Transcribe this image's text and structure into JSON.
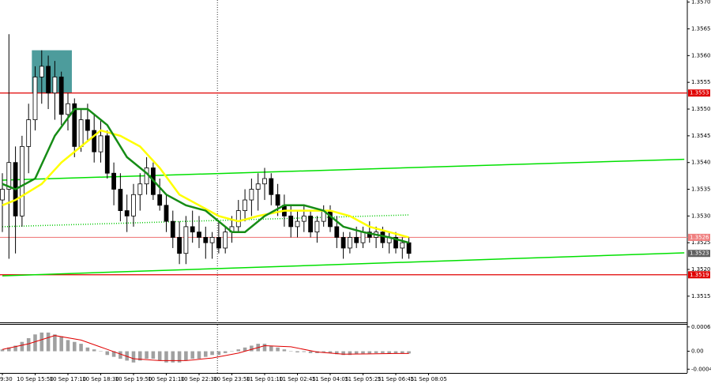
{
  "chart_data": [
    {
      "type": "candlestick",
      "xlim": [
        -0.36,
        104.46
      ],
      "ylim": [
        1.35101,
        1.35704
      ],
      "xticks": [
        {
          "value": 0,
          "label": "9:30"
        },
        {
          "value": 5,
          "label": "10 Sep 15:50"
        },
        {
          "value": 10,
          "label": "10 Sep 17:10"
        },
        {
          "value": 15,
          "label": "10 Sep 18:30"
        },
        {
          "value": 20,
          "label": "10 Sep 19:50"
        },
        {
          "value": 25,
          "label": "10 Sep 21:10"
        },
        {
          "value": 30,
          "label": "10 Sep 22:30"
        },
        {
          "value": 35,
          "label": "10 Sep 23:50"
        },
        {
          "value": 40,
          "label": "11 Sep 01:10"
        },
        {
          "value": 45,
          "label": "11 Sep 02:45"
        },
        {
          "value": 50,
          "label": "11 Sep 04:05"
        },
        {
          "value": 55,
          "label": "11 Sep 05:25"
        },
        {
          "value": 60,
          "label": "11 Sep 06:45"
        },
        {
          "value": 65,
          "label": "11 Sep 08:05"
        }
      ],
      "yticks": [
        {
          "value": 1.357,
          "label": "1.3570"
        },
        1.3565,
        {
          "value": 1.356,
          "label": "1.3560"
        },
        1.3555,
        {
          "value": 1.355,
          "label": "1.3550"
        },
        1.3545,
        {
          "value": 1.354,
          "label": "1.3540"
        },
        1.3535,
        {
          "value": 1.353,
          "label": "1.3530"
        },
        1.3525,
        {
          "value": 1.352,
          "label": "1.3520"
        },
        1.3515
      ],
      "grid": false,
      "candles": [
        [
          1.3533,
          1.3538,
          1.3527,
          1.3535
        ],
        [
          1.3535,
          1.3564,
          1.3522,
          1.354
        ],
        [
          1.354,
          1.3543,
          1.3523,
          1.353
        ],
        [
          1.353,
          1.3545,
          1.3528,
          1.3543
        ],
        [
          1.3543,
          1.3551,
          1.3538,
          1.3548
        ],
        [
          1.3548,
          1.3558,
          1.3546,
          1.3556
        ],
        [
          1.3556,
          1.3561,
          1.3551,
          1.3558
        ],
        [
          1.3558,
          1.356,
          1.355,
          1.3553
        ],
        [
          1.3553,
          1.3559,
          1.3548,
          1.3556
        ],
        [
          1.3556,
          1.3557,
          1.3547,
          1.3549
        ],
        [
          1.3549,
          1.3553,
          1.3546,
          1.3551
        ],
        [
          1.3551,
          1.3552,
          1.3541,
          1.3543
        ],
        [
          1.3543,
          1.355,
          1.3542,
          1.3548
        ],
        [
          1.3548,
          1.3551,
          1.3544,
          1.3546
        ],
        [
          1.3546,
          1.3549,
          1.354,
          1.3542
        ],
        [
          1.3542,
          1.3548,
          1.354,
          1.3545
        ],
        [
          1.3545,
          1.3546,
          1.3537,
          1.3538
        ],
        [
          1.3538,
          1.354,
          1.3532,
          1.3535
        ],
        [
          1.3535,
          1.3538,
          1.3529,
          1.3531
        ],
        [
          1.3531,
          1.3534,
          1.3527,
          1.353
        ],
        [
          1.353,
          1.3536,
          1.3528,
          1.3534
        ],
        [
          1.3534,
          1.3538,
          1.3531,
          1.3536
        ],
        [
          1.3536,
          1.3541,
          1.3534,
          1.3539
        ],
        [
          1.3539,
          1.354,
          1.3533,
          1.3534
        ],
        [
          1.3534,
          1.3537,
          1.3531,
          1.3532
        ],
        [
          1.3532,
          1.3534,
          1.3527,
          1.3529
        ],
        [
          1.3529,
          1.3531,
          1.3524,
          1.3526
        ],
        [
          1.3526,
          1.3529,
          1.3521,
          1.3523
        ],
        [
          1.3523,
          1.353,
          1.3521,
          1.3528
        ],
        [
          1.3528,
          1.3531,
          1.3525,
          1.3527
        ],
        [
          1.3527,
          1.353,
          1.3524,
          1.3526
        ],
        [
          1.3526,
          1.3528,
          1.3522,
          1.3525
        ],
        [
          1.3525,
          1.3527,
          1.3522,
          1.3526
        ],
        [
          1.3526,
          1.3529,
          1.3523,
          1.3524
        ],
        [
          1.3524,
          1.3528,
          1.3523,
          1.3527
        ],
        [
          1.3527,
          1.353,
          1.3525,
          1.3528
        ],
        [
          1.3528,
          1.3533,
          1.3527,
          1.3531
        ],
        [
          1.3531,
          1.3535,
          1.3529,
          1.3533
        ],
        [
          1.3533,
          1.3537,
          1.353,
          1.3535
        ],
        [
          1.3535,
          1.3538,
          1.3531,
          1.3536
        ],
        [
          1.3536,
          1.3539,
          1.3533,
          1.3537
        ],
        [
          1.3537,
          1.3538,
          1.3532,
          1.3534
        ],
        [
          1.3534,
          1.3536,
          1.353,
          1.3532
        ],
        [
          1.3532,
          1.3534,
          1.3528,
          1.353
        ],
        [
          1.353,
          1.3532,
          1.3526,
          1.3528
        ],
        [
          1.3528,
          1.3531,
          1.3526,
          1.3529
        ],
        [
          1.3529,
          1.3532,
          1.3527,
          1.353
        ],
        [
          1.353,
          1.3531,
          1.3526,
          1.3527
        ],
        [
          1.3527,
          1.353,
          1.3525,
          1.3529
        ],
        [
          1.3529,
          1.3532,
          1.3528,
          1.3531
        ],
        [
          1.3531,
          1.3532,
          1.3527,
          1.3528
        ],
        [
          1.3528,
          1.353,
          1.3524,
          1.3526
        ],
        [
          1.3526,
          1.3527,
          1.3522,
          1.3524
        ],
        [
          1.3524,
          1.3527,
          1.3523,
          1.3526
        ],
        [
          1.3526,
          1.3528,
          1.3524,
          1.3525
        ],
        [
          1.3525,
          1.3528,
          1.3524,
          1.3527
        ],
        [
          1.3527,
          1.3529,
          1.3525,
          1.3526
        ],
        [
          1.3526,
          1.3528,
          1.3524,
          1.3527
        ],
        [
          1.3527,
          1.3528,
          1.3524,
          1.3525
        ],
        [
          1.3525,
          1.3527,
          1.3523,
          1.3526
        ],
        [
          1.3526,
          1.3527,
          1.3523,
          1.3524
        ],
        [
          1.3524,
          1.3526,
          1.3522,
          1.3525
        ],
        [
          1.3525,
          1.3526,
          1.3522,
          1.3523
        ]
      ],
      "series": [
        {
          "color": "#ffff00",
          "x": [
            0,
            2,
            6,
            9,
            12,
            15,
            18,
            21,
            24,
            27,
            30,
            33,
            36,
            39,
            43,
            47,
            50,
            53,
            56,
            59,
            62
          ],
          "values": [
            1.3532,
            1.3533,
            1.3536,
            1.354,
            1.3543,
            1.3546,
            1.3545,
            1.3543,
            1.3539,
            1.3534,
            1.3532,
            1.353,
            1.3529,
            1.353,
            1.3531,
            1.3531,
            1.3531,
            1.353,
            1.3528,
            1.3527,
            1.3526
          ]
        },
        {
          "color": "#168c16",
          "x": [
            0,
            2,
            5,
            8,
            11,
            13,
            16,
            19,
            22,
            25,
            28,
            31,
            35,
            37,
            40,
            43,
            46,
            49,
            52,
            55,
            59,
            62
          ],
          "values": [
            1.3536,
            1.3535,
            1.3537,
            1.3545,
            1.355,
            1.355,
            1.3547,
            1.3541,
            1.3538,
            1.3534,
            1.3532,
            1.3531,
            1.3527,
            1.3527,
            1.353,
            1.3532,
            1.3532,
            1.3531,
            1.3528,
            1.3527,
            1.3526,
            1.3525
          ]
        }
      ],
      "trendlines": [
        {
          "color": "#00e000",
          "x": [
            0,
            104
          ],
          "values": [
            1.35367,
            1.35406
          ]
        },
        {
          "color": "#00e000",
          "x": [
            0,
            104
          ],
          "values": [
            1.35188,
            1.35231
          ]
        },
        {
          "color": "#00c800",
          "x": [
            0,
            62
          ],
          "values": [
            1.3528,
            1.35302
          ],
          "dotted": true
        }
      ],
      "zones": [
        {
          "color": "#2e8b8b",
          "x": [
            4.5,
            10.6
          ],
          "values": [
            1.3553,
            1.3561
          ]
        }
      ],
      "vlines": [
        32.8
      ],
      "levels": [
        {
          "value": 1.3553,
          "color": "#e00000"
        },
        {
          "value": 1.3526,
          "color": "#f08080"
        },
        {
          "value": 1.3519,
          "color": "#e00000"
        }
      ],
      "last_price": 1.3523
    },
    {
      "type": "macd",
      "ylim": [
        -0.00058,
        0.00073
      ],
      "yticks": [
        0.00065,
        {
          "value": 0,
          "label": "0.00"
        },
        -0.00048
      ],
      "color": "#a0a0a0",
      "values": [
        5e-05,
        0.0001,
        0.00015,
        0.00025,
        0.00035,
        0.00045,
        0.0005,
        0.0005,
        0.00045,
        0.0004,
        0.0003,
        0.00025,
        0.0002,
        0.0001,
        5e-05,
        0,
        -0.0001,
        -0.00015,
        -0.0002,
        -0.00025,
        -0.0003,
        -0.00025,
        -0.0002,
        -0.0002,
        -0.00025,
        -0.0003,
        -0.0003,
        -0.0003,
        -0.00025,
        -0.0002,
        -0.0002,
        -0.00015,
        -0.0001,
        -0.0001,
        -5e-05,
        0,
        5e-05,
        0.0001,
        0.00015,
        0.0002,
        0.0002,
        0.00015,
        0.0001,
        5e-05,
        0,
        -3e-05,
        -2e-05,
        -5e-05,
        -5e-05,
        -3e-05,
        -5e-05,
        -8e-05,
        -0.0001,
        -0.0001,
        -8e-05,
        -6e-05,
        -6e-05,
        -5e-05,
        -5e-05,
        -6e-05,
        -6e-05,
        -6e-05,
        -6e-05
      ],
      "signal": {
        "color": "#e00000",
        "x": [
          0,
          4,
          8,
          12,
          16,
          20,
          24,
          28,
          32,
          36,
          40,
          44,
          48,
          52,
          56,
          60,
          62
        ],
        "values": [
          5e-05,
          0.0002,
          0.00042,
          0.0003,
          5e-05,
          -0.0002,
          -0.00025,
          -0.00025,
          -0.00018,
          -5e-05,
          0.00015,
          0.00012,
          -2e-05,
          -8e-05,
          -7e-05,
          -6e-05,
          -6e-05
        ]
      }
    }
  ]
}
